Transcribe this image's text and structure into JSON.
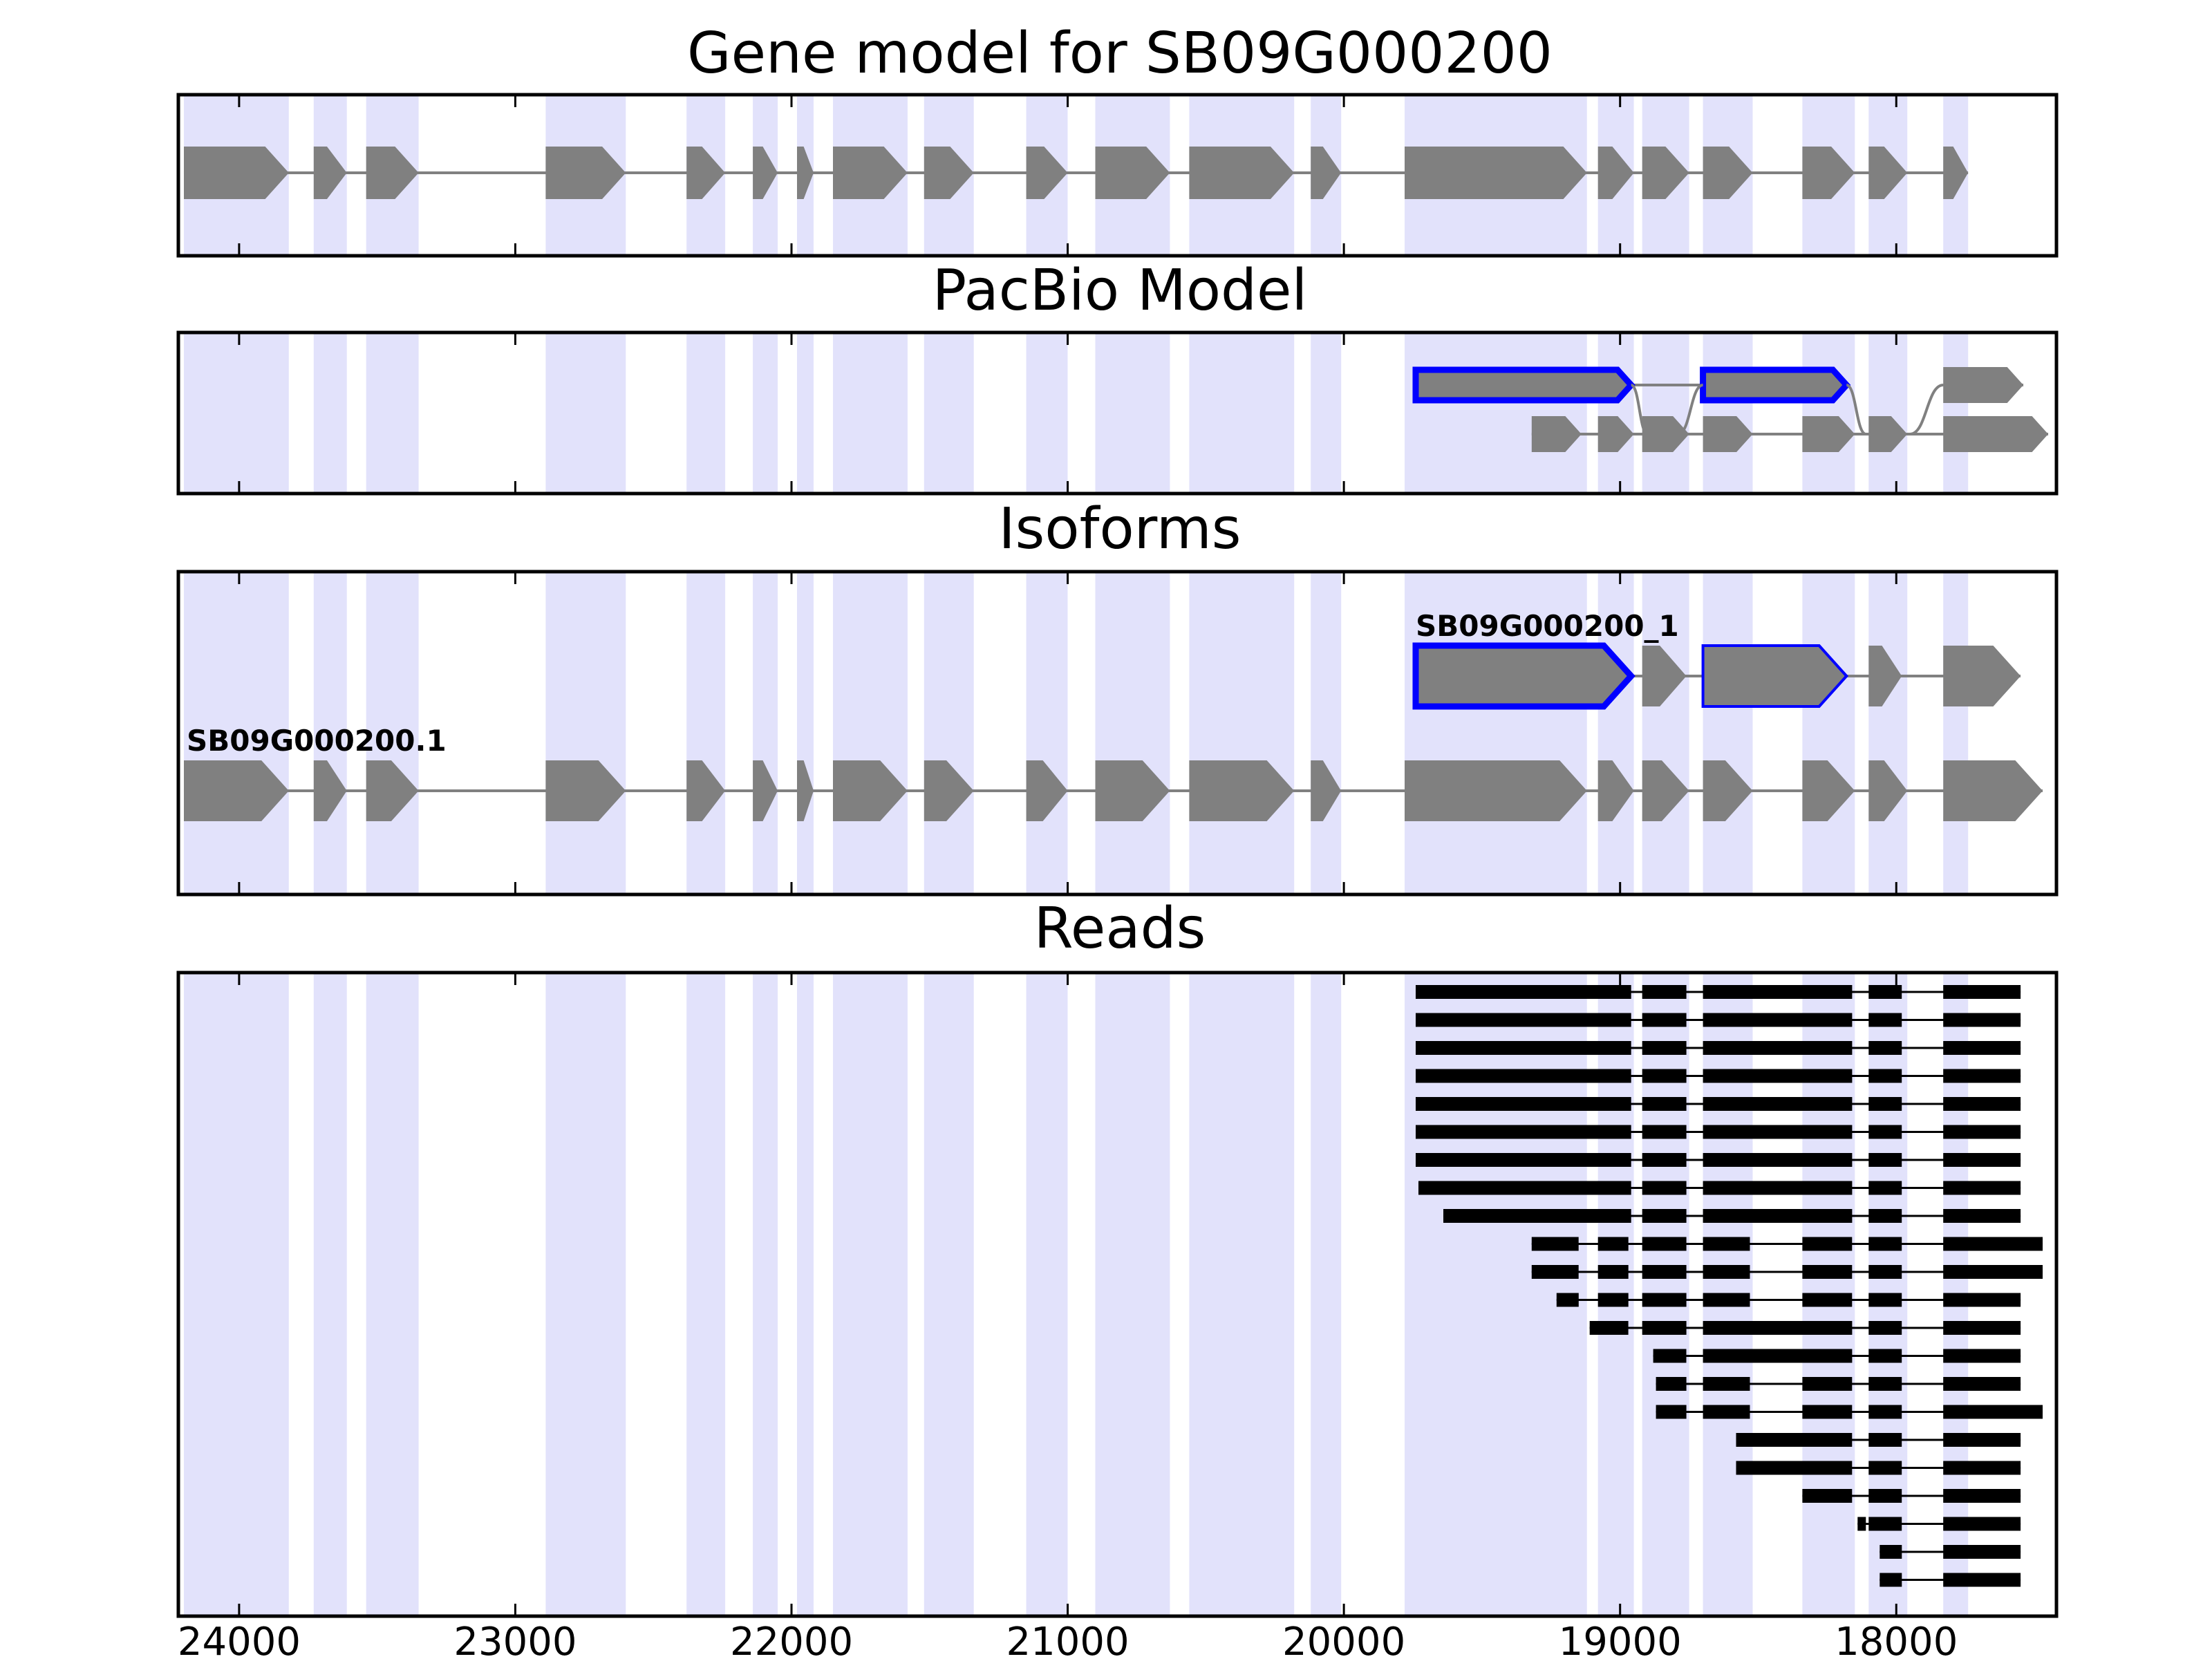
{
  "colors": {
    "exon_band": "#e2e2fb",
    "exon_fill": "#808080",
    "intron_line": "#808080",
    "highlight_outline": "#0000ff",
    "read_color": "#000000",
    "frame": "#000000"
  },
  "chart_data": {
    "type": "gene_track",
    "xlim": [
      24220,
      17420
    ],
    "x_reversed": true,
    "x_ticks": [
      24000,
      23000,
      22000,
      21000,
      20000,
      19000,
      18000
    ],
    "x_tick_labels": [
      "24000",
      "23000",
      "22000",
      "21000",
      "20000",
      "19000",
      "18000"
    ],
    "grid": false,
    "panels": [
      {
        "title": "Gene model for SB09G000200",
        "exons": [
          [
            24200,
            23820
          ],
          [
            23730,
            23610
          ],
          [
            23540,
            23350
          ],
          [
            22890,
            22600
          ],
          [
            22380,
            22240
          ],
          [
            22140,
            22050
          ],
          [
            21980,
            21920
          ],
          [
            21850,
            21580
          ],
          [
            21520,
            21340
          ],
          [
            21150,
            21000
          ],
          [
            20900,
            20630
          ],
          [
            20560,
            20180
          ],
          [
            20120,
            20010
          ],
          [
            19780,
            19120
          ],
          [
            19080,
            18950
          ],
          [
            18920,
            18750
          ],
          [
            18700,
            18520
          ],
          [
            18340,
            18150
          ],
          [
            18100,
            17960
          ],
          [
            17830,
            17740
          ]
        ]
      },
      {
        "title": "PacBio Model",
        "transcripts": [
          {
            "highlight": true,
            "exons": [
              [
                19740,
                18960
              ],
              [
                18700,
                18180
              ]
            ]
          },
          {
            "highlight": false,
            "exons": [
              [
                17830,
                17540
              ]
            ]
          },
          {
            "highlight": false,
            "exons": [
              [
                19320,
                19140
              ],
              [
                19080,
                18950
              ],
              [
                18920,
                18750
              ],
              [
                18700,
                18520
              ],
              [
                18340,
                18150
              ],
              [
                18100,
                17960
              ],
              [
                17830,
                17450
              ]
            ]
          }
        ]
      },
      {
        "title": "Isoforms",
        "isoforms": [
          {
            "label": "SB09G000200_1",
            "highlight": [
              true,
              false,
              true,
              false,
              false
            ],
            "exons": [
              [
                19740,
                18960
              ],
              [
                18920,
                18760
              ],
              [
                18700,
                18180
              ],
              [
                18100,
                17980
              ],
              [
                17830,
                17550
              ]
            ]
          },
          {
            "label": "SB09G000200.1",
            "highlight": [],
            "exons": [
              [
                24200,
                23820
              ],
              [
                23730,
                23610
              ],
              [
                23540,
                23350
              ],
              [
                22890,
                22600
              ],
              [
                22380,
                22240
              ],
              [
                22140,
                22050
              ],
              [
                21980,
                21920
              ],
              [
                21850,
                21580
              ],
              [
                21520,
                21340
              ],
              [
                21150,
                21000
              ],
              [
                20900,
                20630
              ],
              [
                20560,
                20180
              ],
              [
                20120,
                20010
              ],
              [
                19780,
                19120
              ],
              [
                19080,
                18950
              ],
              [
                18920,
                18750
              ],
              [
                18700,
                18520
              ],
              [
                18340,
                18150
              ],
              [
                18100,
                17960
              ],
              [
                17830,
                17470
              ]
            ]
          }
        ]
      },
      {
        "title": "Reads",
        "reads": [
          [
            [
              19740,
              18960
            ],
            [
              18920,
              18760
            ],
            [
              18700,
              18160
            ],
            [
              18100,
              17980
            ],
            [
              17830,
              17550
            ]
          ],
          [
            [
              19740,
              18960
            ],
            [
              18920,
              18760
            ],
            [
              18700,
              18160
            ],
            [
              18100,
              17980
            ],
            [
              17830,
              17550
            ]
          ],
          [
            [
              19740,
              18960
            ],
            [
              18920,
              18760
            ],
            [
              18700,
              18160
            ],
            [
              18100,
              17980
            ],
            [
              17830,
              17550
            ]
          ],
          [
            [
              19740,
              18960
            ],
            [
              18920,
              18760
            ],
            [
              18700,
              18160
            ],
            [
              18100,
              17980
            ],
            [
              17830,
              17550
            ]
          ],
          [
            [
              19740,
              18960
            ],
            [
              18920,
              18760
            ],
            [
              18700,
              18160
            ],
            [
              18100,
              17980
            ],
            [
              17830,
              17550
            ]
          ],
          [
            [
              19740,
              18960
            ],
            [
              18920,
              18760
            ],
            [
              18700,
              18160
            ],
            [
              18100,
              17980
            ],
            [
              17830,
              17550
            ]
          ],
          [
            [
              19740,
              18960
            ],
            [
              18920,
              18760
            ],
            [
              18700,
              18160
            ],
            [
              18100,
              17980
            ],
            [
              17830,
              17550
            ]
          ],
          [
            [
              19730,
              18960
            ],
            [
              18920,
              18760
            ],
            [
              18700,
              18160
            ],
            [
              18100,
              17980
            ],
            [
              17830,
              17550
            ]
          ],
          [
            [
              19640,
              18960
            ],
            [
              18920,
              18760
            ],
            [
              18700,
              18160
            ],
            [
              18100,
              17980
            ],
            [
              17830,
              17550
            ]
          ],
          [
            [
              19320,
              19150
            ],
            [
              19080,
              18970
            ],
            [
              18920,
              18760
            ],
            [
              18700,
              18530
            ],
            [
              18340,
              18160
            ],
            [
              18100,
              17980
            ],
            [
              17830,
              17470
            ]
          ],
          [
            [
              19320,
              19150
            ],
            [
              19080,
              18970
            ],
            [
              18920,
              18760
            ],
            [
              18700,
              18530
            ],
            [
              18340,
              18160
            ],
            [
              18100,
              17980
            ],
            [
              17830,
              17470
            ]
          ],
          [
            [
              19230,
              19150
            ],
            [
              19080,
              18970
            ],
            [
              18920,
              18760
            ],
            [
              18700,
              18530
            ],
            [
              18340,
              18160
            ],
            [
              18100,
              17980
            ],
            [
              17830,
              17550
            ]
          ],
          [
            [
              19110,
              18970
            ],
            [
              18920,
              18760
            ],
            [
              18700,
              18160
            ],
            [
              18100,
              17980
            ],
            [
              17830,
              17550
            ]
          ],
          [
            [
              18880,
              18760
            ],
            [
              18700,
              18160
            ],
            [
              18100,
              17980
            ],
            [
              17830,
              17550
            ]
          ],
          [
            [
              18870,
              18760
            ],
            [
              18700,
              18530
            ],
            [
              18340,
              18160
            ],
            [
              18100,
              17980
            ],
            [
              17830,
              17550
            ]
          ],
          [
            [
              18870,
              18760
            ],
            [
              18700,
              18530
            ],
            [
              18340,
              18160
            ],
            [
              18100,
              17980
            ],
            [
              17830,
              17470
            ]
          ],
          [
            [
              18580,
              18160
            ],
            [
              18100,
              17980
            ],
            [
              17830,
              17550
            ]
          ],
          [
            [
              18580,
              18160
            ],
            [
              18100,
              17980
            ],
            [
              17830,
              17550
            ]
          ],
          [
            [
              18340,
              18160
            ],
            [
              18100,
              17980
            ],
            [
              17830,
              17550
            ]
          ],
          [
            [
              18140,
              18110
            ],
            [
              18100,
              17980
            ],
            [
              17830,
              17550
            ]
          ],
          [
            [
              18060,
              17980
            ],
            [
              17830,
              17550
            ]
          ],
          [
            [
              18060,
              17980
            ],
            [
              17830,
              17550
            ]
          ]
        ]
      }
    ]
  }
}
